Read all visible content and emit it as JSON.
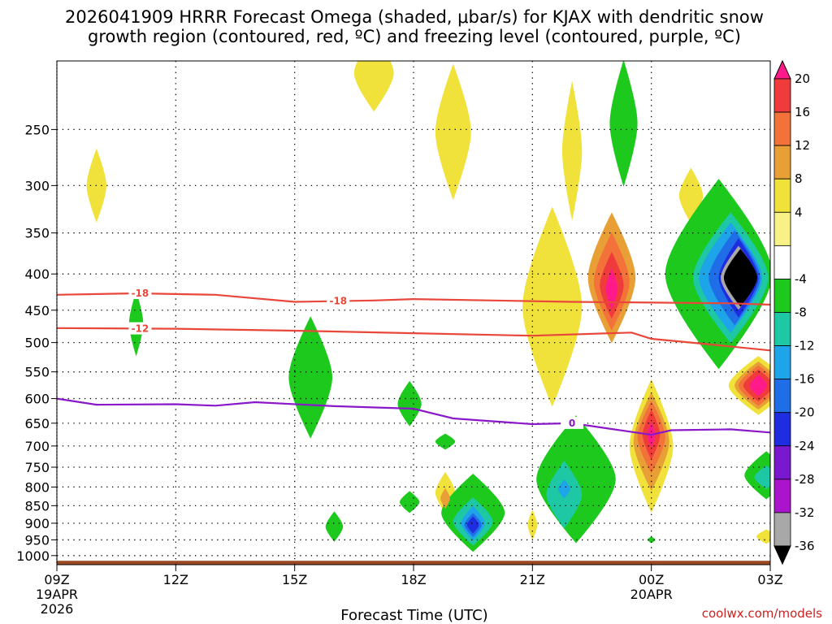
{
  "title": {
    "line1": "2026041909 HRRR Forecast Omega (shaded, μbar/s) for KJAX with dendritic snow",
    "line2": "growth region (contoured, red, ºC) and freezing level (contoured, purple, ºC)"
  },
  "credit": "coolwx.com/models",
  "colors": {
    "dgz_line": "#e8473a",
    "freezing_line": "#8a18c9",
    "ground": "#9c4a24",
    "grid": "#000000"
  },
  "chart_data": {
    "type": "heatmap",
    "xlabel": "Forecast Time (UTC)",
    "x_ticks": [
      {
        "hour": 0,
        "label": "09Z",
        "sub1": "19APR",
        "sub2": "2026"
      },
      {
        "hour": 3,
        "label": "12Z"
      },
      {
        "hour": 6,
        "label": "15Z"
      },
      {
        "hour": 9,
        "label": "18Z"
      },
      {
        "hour": 12,
        "label": "21Z"
      },
      {
        "hour": 15,
        "label": "00Z",
        "sub1": "20APR"
      },
      {
        "hour": 18,
        "label": "03Z"
      }
    ],
    "x_range": [
      0,
      18
    ],
    "y_scale": "log",
    "y_range_hpa": [
      1030,
      200
    ],
    "y_ticks": [
      250,
      300,
      350,
      400,
      450,
      500,
      550,
      600,
      650,
      700,
      750,
      800,
      850,
      900,
      950,
      1000
    ],
    "grid": true,
    "colorbar": {
      "ticks": [
        "20",
        "16",
        "12",
        "8",
        "4",
        "-4",
        "-8",
        "-12",
        "-16",
        "-20",
        "-24",
        "-28",
        "-32",
        "-36"
      ],
      "colors": [
        "#ff1a8c",
        "#ef3b3b",
        "#f2723a",
        "#e89f36",
        "#f0e23a",
        "#f7f186",
        "#ffffff",
        "#1dc91d",
        "#1ec8a4",
        "#1ea4e8",
        "#1f6ee8",
        "#1e2de0",
        "#7a18d0",
        "#aa14cc",
        "#a8a8a8",
        "#000000"
      ]
    },
    "contours": [
      {
        "name": "-18",
        "kind": "dgz",
        "points": [
          [
            0,
            428
          ],
          [
            2,
            426
          ],
          [
            4,
            428
          ],
          [
            6,
            438
          ],
          [
            8,
            436
          ],
          [
            9,
            434
          ],
          [
            11,
            436
          ],
          [
            13,
            438
          ],
          [
            15,
            439
          ],
          [
            17,
            440
          ],
          [
            18,
            442
          ]
        ]
      },
      {
        "name": "-12",
        "kind": "dgz",
        "points": [
          [
            0,
            477
          ],
          [
            3,
            478
          ],
          [
            6,
            481
          ],
          [
            9,
            485
          ],
          [
            12,
            489
          ],
          [
            14.5,
            484
          ],
          [
            15,
            494
          ],
          [
            16,
            500
          ],
          [
            18,
            513
          ]
        ]
      },
      {
        "name": "0",
        "kind": "frz",
        "points": [
          [
            0,
            600
          ],
          [
            1,
            612
          ],
          [
            3,
            611
          ],
          [
            4,
            614
          ],
          [
            5,
            607
          ],
          [
            7,
            615
          ],
          [
            9,
            620
          ],
          [
            10,
            640
          ],
          [
            12,
            652
          ],
          [
            13,
            650
          ],
          [
            15,
            675
          ],
          [
            15.5,
            665
          ],
          [
            17,
            663
          ],
          [
            18,
            670
          ]
        ]
      }
    ],
    "contour_labels": [
      {
        "text": "-18",
        "x": 2.1,
        "p": 426,
        "kind": "dgz"
      },
      {
        "text": "-18",
        "x": 7.1,
        "p": 437,
        "kind": "dgz"
      },
      {
        "text": "-12",
        "x": 2.1,
        "p": 478,
        "kind": "dgz"
      },
      {
        "text": "0",
        "x": 13.0,
        "p": 650,
        "kind": "frz"
      }
    ],
    "omega_features": [
      {
        "kind": "pos",
        "level": 4,
        "x": 1.0,
        "p": 300,
        "rx": 0.25,
        "rp": 36
      },
      {
        "kind": "pos",
        "level": 4,
        "x": 8.0,
        "p": 208,
        "rx": 0.5,
        "rp": 26
      },
      {
        "kind": "pos",
        "level": 4,
        "x": 10.0,
        "p": 252,
        "rx": 0.45,
        "rp": 55
      },
      {
        "kind": "pos",
        "level": 4,
        "x": 12.5,
        "p": 445,
        "rx": 0.75,
        "rp": 140
      },
      {
        "kind": "pos",
        "level": 4,
        "x": 13.0,
        "p": 268,
        "rx": 0.25,
        "rp": 60
      },
      {
        "kind": "pos",
        "level": 4,
        "x": 16.0,
        "p": 310,
        "rx": 0.3,
        "rp": 28
      },
      {
        "kind": "pos",
        "level": 4,
        "x": 9.8,
        "p": 815,
        "rx": 0.25,
        "rp": 55
      },
      {
        "kind": "pos",
        "level": 4,
        "x": 12.0,
        "p": 905,
        "rx": 0.12,
        "rp": 45
      },
      {
        "kind": "pos",
        "level": 4,
        "x": 15.0,
        "p": 700,
        "rx": 0.55,
        "rp": 150
      },
      {
        "kind": "pos",
        "level": 4,
        "x": 17.7,
        "p": 575,
        "rx": 0.75,
        "rp": 55
      },
      {
        "kind": "pos",
        "level": 4,
        "x": 17.9,
        "p": 940,
        "rx": 0.25,
        "rp": 22
      },
      {
        "kind": "neg",
        "level": -8,
        "x": 2.0,
        "p": 470,
        "rx": 0.18,
        "rp": 50
      },
      {
        "kind": "neg",
        "level": -8,
        "x": 6.4,
        "p": 560,
        "rx": 0.55,
        "rp": 110
      },
      {
        "kind": "neg",
        "level": -8,
        "x": 8.9,
        "p": 610,
        "rx": 0.3,
        "rp": 45
      },
      {
        "kind": "neg",
        "level": -8,
        "x": 9.8,
        "p": 690,
        "rx": 0.25,
        "rp": 18
      },
      {
        "kind": "neg",
        "level": -8,
        "x": 7.0,
        "p": 910,
        "rx": 0.22,
        "rp": 45
      },
      {
        "kind": "neg",
        "level": -8,
        "x": 8.9,
        "p": 840,
        "rx": 0.25,
        "rp": 30
      },
      {
        "kind": "neg",
        "level": -8,
        "x": 10.5,
        "p": 870,
        "rx": 0.8,
        "rp": 110
      },
      {
        "kind": "neg",
        "level": -8,
        "x": 13.1,
        "p": 780,
        "rx": 1.0,
        "rp": 160
      },
      {
        "kind": "neg",
        "level": -8,
        "x": 14.3,
        "p": 245,
        "rx": 0.35,
        "rp": 50
      },
      {
        "kind": "neg",
        "level": -8,
        "x": 16.7,
        "p": 400,
        "rx": 1.35,
        "rp": 120
      },
      {
        "kind": "neg",
        "level": -8,
        "x": 17.9,
        "p": 770,
        "rx": 0.55,
        "rp": 60
      },
      {
        "kind": "neg",
        "level": -8,
        "x": 15.0,
        "p": 950,
        "rx": 0.1,
        "rp": 10
      },
      {
        "kind": "neg",
        "level": -12,
        "x": 10.5,
        "p": 895,
        "rx": 0.5,
        "rp": 70
      },
      {
        "kind": "neg",
        "level": -12,
        "x": 12.8,
        "p": 820,
        "rx": 0.45,
        "rp": 90
      },
      {
        "kind": "neg",
        "level": -12,
        "x": 17.0,
        "p": 405,
        "rx": 0.95,
        "rp": 85
      },
      {
        "kind": "neg",
        "level": -12,
        "x": 17.9,
        "p": 775,
        "rx": 0.3,
        "rp": 30
      },
      {
        "kind": "neg",
        "level": -16,
        "x": 10.5,
        "p": 900,
        "rx": 0.3,
        "rp": 50
      },
      {
        "kind": "neg",
        "level": -16,
        "x": 17.0,
        "p": 405,
        "rx": 0.8,
        "rp": 72
      },
      {
        "kind": "neg",
        "level": -16,
        "x": 12.8,
        "p": 805,
        "rx": 0.15,
        "rp": 25
      },
      {
        "kind": "neg",
        "level": -20,
        "x": 10.5,
        "p": 905,
        "rx": 0.22,
        "rp": 35
      },
      {
        "kind": "neg",
        "level": -20,
        "x": 17.1,
        "p": 405,
        "rx": 0.65,
        "rp": 62
      },
      {
        "kind": "neg",
        "level": -24,
        "x": 10.5,
        "p": 905,
        "rx": 0.15,
        "rp": 25
      },
      {
        "kind": "neg",
        "level": -24,
        "x": 17.2,
        "p": 405,
        "rx": 0.5,
        "rp": 52
      },
      {
        "kind": "neg",
        "level": -32,
        "x": 17.2,
        "p": 405,
        "rx": 0.45,
        "rp": 42
      },
      {
        "kind": "neg",
        "level": -36,
        "x": 17.25,
        "p": 405,
        "rx": 0.42,
        "rp": 38
      },
      {
        "kind": "pos",
        "level": 8,
        "x": 14.0,
        "p": 405,
        "rx": 0.6,
        "rp": 85
      },
      {
        "kind": "pos",
        "level": 8,
        "x": 15.0,
        "p": 690,
        "rx": 0.45,
        "rp": 110
      },
      {
        "kind": "pos",
        "level": 8,
        "x": 17.7,
        "p": 575,
        "rx": 0.6,
        "rp": 45
      },
      {
        "kind": "pos",
        "level": 8,
        "x": 9.8,
        "p": 830,
        "rx": 0.12,
        "rp": 28
      },
      {
        "kind": "pos",
        "level": 12,
        "x": 14.0,
        "p": 410,
        "rx": 0.45,
        "rp": 65
      },
      {
        "kind": "pos",
        "level": 12,
        "x": 15.0,
        "p": 680,
        "rx": 0.35,
        "rp": 80
      },
      {
        "kind": "pos",
        "level": 12,
        "x": 17.7,
        "p": 575,
        "rx": 0.5,
        "rp": 38
      },
      {
        "kind": "pos",
        "level": 16,
        "x": 14.0,
        "p": 415,
        "rx": 0.3,
        "rp": 45
      },
      {
        "kind": "pos",
        "level": 16,
        "x": 15.0,
        "p": 675,
        "rx": 0.22,
        "rp": 55
      },
      {
        "kind": "pos",
        "level": 16,
        "x": 17.7,
        "p": 575,
        "rx": 0.38,
        "rp": 30
      },
      {
        "kind": "pos",
        "level": 20,
        "x": 14.0,
        "p": 420,
        "rx": 0.15,
        "rp": 28
      },
      {
        "kind": "pos",
        "level": 20,
        "x": 15.0,
        "p": 675,
        "rx": 0.1,
        "rp": 28
      },
      {
        "kind": "pos",
        "level": 20,
        "x": 17.7,
        "p": 575,
        "rx": 0.22,
        "rp": 20
      }
    ]
  }
}
